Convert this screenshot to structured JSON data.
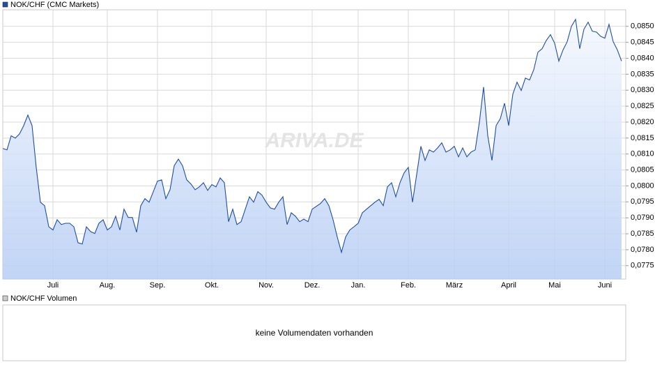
{
  "chart_data": {
    "type": "line",
    "legend": "NOK/CHF (CMC Markets)",
    "watermark": "ARIVA.DE",
    "categories": [
      null,
      null,
      null,
      null,
      null,
      null,
      null,
      null,
      null,
      null,
      null,
      null,
      "Juli",
      null,
      null,
      null,
      null,
      null,
      null,
      null,
      null,
      null,
      null,
      null,
      null,
      "Aug.",
      null,
      null,
      null,
      null,
      null,
      null,
      null,
      null,
      null,
      null,
      null,
      "Sep.",
      null,
      null,
      null,
      null,
      null,
      null,
      null,
      null,
      null,
      null,
      null,
      null,
      "Okt.",
      null,
      null,
      null,
      null,
      null,
      null,
      null,
      null,
      null,
      null,
      null,
      null,
      "Nov.",
      null,
      null,
      null,
      null,
      null,
      null,
      null,
      null,
      null,
      null,
      "Dez.",
      null,
      null,
      null,
      null,
      null,
      null,
      null,
      null,
      null,
      null,
      "Jan.",
      null,
      null,
      null,
      null,
      null,
      null,
      null,
      null,
      null,
      null,
      null,
      "Feb.",
      null,
      null,
      null,
      null,
      null,
      null,
      null,
      null,
      null,
      null,
      "März",
      null,
      null,
      null,
      null,
      null,
      null,
      null,
      null,
      null,
      null,
      null,
      null,
      "April",
      null,
      null,
      null,
      null,
      null,
      null,
      null,
      null,
      null,
      null,
      "Mai",
      null,
      null,
      null,
      null,
      null,
      null,
      null,
      null,
      null,
      null,
      null,
      "Juni",
      null,
      null,
      null,
      null
    ],
    "series": [
      {
        "name": "NOK/CHF (CMC Markets)",
        "color": "#1f4ea8",
        "values": [
          0.08117,
          0.08113,
          0.08157,
          0.0815,
          0.08163,
          0.08189,
          0.08222,
          0.08189,
          0.08058,
          0.07949,
          0.07938,
          0.07872,
          0.07862,
          0.07894,
          0.07879,
          0.07883,
          0.07883,
          0.07872,
          0.07822,
          0.07818,
          0.07872,
          0.07857,
          0.07851,
          0.07883,
          0.07894,
          0.07862,
          0.07872,
          0.07905,
          0.07862,
          0.07927,
          0.07901,
          0.07901,
          0.07855,
          0.07938,
          0.0796,
          0.07949,
          0.07982,
          0.08015,
          0.08019,
          0.0796,
          0.07988,
          0.08063,
          0.08084,
          0.08063,
          0.08019,
          0.08006,
          0.07988,
          0.07997,
          0.0801,
          0.07986,
          0.08004,
          0.07997,
          0.08025,
          0.0801,
          0.07888,
          0.07927,
          0.07879,
          0.07888,
          0.07927,
          0.07966,
          0.07949,
          0.07982,
          0.07971,
          0.07949,
          0.07931,
          0.07927,
          0.07949,
          0.07966,
          0.07879,
          0.07916,
          0.07905,
          0.07888,
          0.07896,
          0.07888,
          0.07927,
          0.07936,
          0.07945,
          0.0796,
          0.07938,
          0.07894,
          0.0784,
          0.07792,
          0.0784,
          0.07862,
          0.07872,
          0.07883,
          0.07916,
          0.07927,
          0.07938,
          0.07949,
          0.07958,
          0.07938,
          0.07997,
          0.0801,
          0.07966,
          0.0801,
          0.08041,
          0.08058,
          0.07949,
          0.08036,
          0.08124,
          0.0808,
          0.08113,
          0.08106,
          0.08119,
          0.08135,
          0.08106,
          0.08113,
          0.08124,
          0.08091,
          0.08119,
          0.08091,
          0.08106,
          0.08113,
          0.082,
          0.0831,
          0.08157,
          0.0808,
          0.08189,
          0.08211,
          0.08259,
          0.08189,
          0.08288,
          0.08325,
          0.08299,
          0.08338,
          0.08332,
          0.08364,
          0.08419,
          0.0843,
          0.08456,
          0.08474,
          0.08447,
          0.08391,
          0.08426,
          0.08452,
          0.085,
          0.08522,
          0.0843,
          0.08491,
          0.08513,
          0.08485,
          0.08482,
          0.08469,
          0.08463,
          0.08506,
          0.08452,
          0.08426,
          0.08391
        ]
      }
    ],
    "ylim": [
      0.07708,
      0.08552
    ],
    "yticks": [
      {
        "value": 0.0775,
        "label": "0,0775"
      },
      {
        "value": 0.078,
        "label": "0,0780"
      },
      {
        "value": 0.0785,
        "label": "0,0785"
      },
      {
        "value": 0.079,
        "label": "0,0790"
      },
      {
        "value": 0.0795,
        "label": "0,0795"
      },
      {
        "value": 0.08,
        "label": "0,0800"
      },
      {
        "value": 0.0805,
        "label": "0,0805"
      },
      {
        "value": 0.081,
        "label": "0,0810"
      },
      {
        "value": 0.0815,
        "label": "0,0815"
      },
      {
        "value": 0.082,
        "label": "0,0820"
      },
      {
        "value": 0.0825,
        "label": "0,0825"
      },
      {
        "value": 0.083,
        "label": "0,0830"
      },
      {
        "value": 0.0835,
        "label": "0,0835"
      },
      {
        "value": 0.084,
        "label": "0,0840"
      },
      {
        "value": 0.0845,
        "label": "0,0845"
      },
      {
        "value": 0.085,
        "label": "0,0850"
      }
    ],
    "grid": true
  },
  "volume_panel": {
    "legend": "NOK/CHF Volumen",
    "message": "keine Volumendaten vorhanden"
  }
}
